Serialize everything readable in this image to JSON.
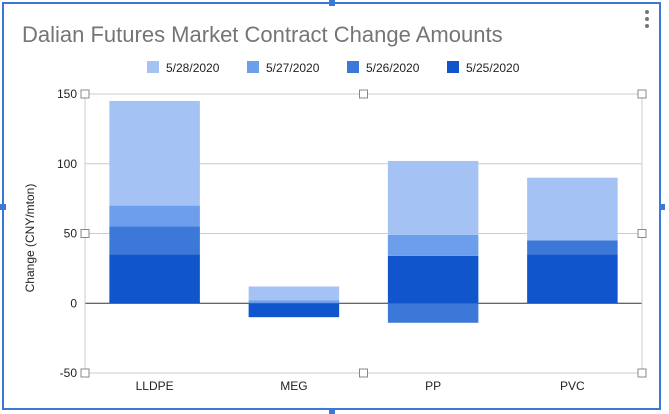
{
  "chart_data": {
    "type": "bar",
    "stacked": true,
    "title": "Dalian Futures Market Contract Change Amounts",
    "xlabel": "",
    "ylabel": "Change (CNY/mton)",
    "ylim": [
      -50,
      150
    ],
    "yticks": [
      -50,
      0,
      50,
      100,
      150
    ],
    "grid": true,
    "legend_position": "top",
    "categories": [
      "LLDPE",
      "MEG",
      "PP",
      "PVC"
    ],
    "series": [
      {
        "name": "5/25/2020",
        "color": "#1155cc",
        "values": [
          35,
          -10,
          34,
          35
        ]
      },
      {
        "name": "5/26/2020",
        "color": "#3c78d8",
        "values": [
          20,
          0,
          -14,
          10
        ]
      },
      {
        "name": "5/27/2020",
        "color": "#6d9eeb",
        "values": [
          15,
          2,
          15,
          0
        ]
      },
      {
        "name": "5/28/2020",
        "color": "#a4c2f4",
        "values": [
          75,
          10,
          53,
          45
        ]
      }
    ],
    "legend_order": [
      "5/28/2020",
      "5/27/2020",
      "5/26/2020",
      "5/25/2020"
    ]
  }
}
